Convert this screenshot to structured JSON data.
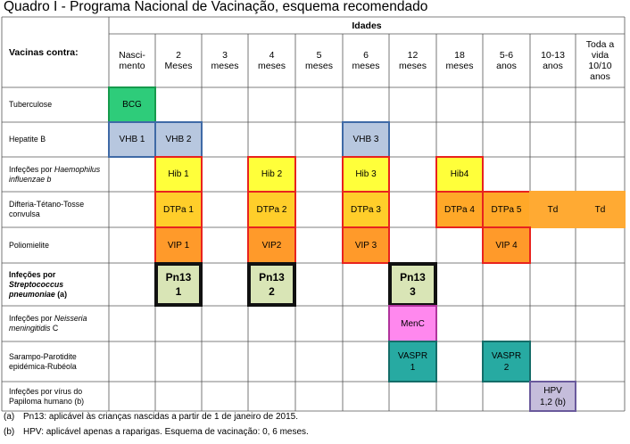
{
  "title": "Quadro I - Programa Nacional de Vacinação, esquema recomendado",
  "header": {
    "idades_label": "Idades",
    "vacinas_label": "Vacinas contra:",
    "ages": [
      "Nasci-\nmento",
      "2\nMeses",
      "3\nmeses",
      "4\nmeses",
      "5\nmeses",
      "6\nmeses",
      "12\nmeses",
      "18\nmeses",
      "5-6\nanos",
      "10-13\nanos",
      "Toda a\nvida\n10/10\nanos"
    ]
  },
  "rows": [
    {
      "pre": "Tuberculose",
      "it": "",
      "post": "",
      "bold": false
    },
    {
      "pre": "Hepatite B",
      "it": "",
      "post": "",
      "bold": false
    },
    {
      "pre": "Infeções por ",
      "it": "Haemophilus influenzae b",
      "post": "",
      "bold": false
    },
    {
      "pre": "Difteria-Tétano-Tosse convulsa",
      "it": "",
      "post": "",
      "bold": false
    },
    {
      "pre": "Poliomielite",
      "it": "",
      "post": "",
      "bold": false
    },
    {
      "pre": "Infeções por ",
      "it": "Streptococcus pneumoniae",
      "post": " (a)",
      "bold": true
    },
    {
      "pre": "Infeções por ",
      "it": "Neisseria meningitidis",
      "post": " C",
      "bold": false
    },
    {
      "pre": "Sarampo-Parotidite epidémica-Rubéola",
      "it": "",
      "post": "",
      "bold": false
    },
    {
      "pre": "Infeções por vírus do Papiloma humano (b)",
      "it": "",
      "post": "",
      "bold": false
    }
  ],
  "vaccines": [
    {
      "label": "BCG",
      "row": 0,
      "col": 0,
      "bg": "#2ecc7a",
      "border": "#169a4c"
    },
    {
      "label": "VHB 1",
      "row": 1,
      "col": 0,
      "bg": "#b7c7df",
      "border": "#3f6aa6"
    },
    {
      "label": "VHB 2",
      "row": 1,
      "col": 1,
      "bg": "#b7c7df",
      "border": "#3f6aa6"
    },
    {
      "label": "VHB 3",
      "row": 1,
      "col": 5,
      "bg": "#b7c7df",
      "border": "#3f6aa6"
    },
    {
      "label": "Hib 1",
      "row": 2,
      "col": 1,
      "bg": "#ffff3a",
      "border": "#e8231e"
    },
    {
      "label": "Hib 2",
      "row": 2,
      "col": 3,
      "bg": "#ffff3a",
      "border": "#e8231e"
    },
    {
      "label": "Hib 3",
      "row": 2,
      "col": 5,
      "bg": "#ffff3a",
      "border": "#e8231e"
    },
    {
      "label": "Hib4",
      "row": 2,
      "col": 7,
      "bg": "#ffff3a",
      "border": "#e8231e"
    },
    {
      "label": "DTPa 1",
      "row": 3,
      "col": 1,
      "bg": "#ffce2a",
      "border": "#e8231e"
    },
    {
      "label": "DTPa 2",
      "row": 3,
      "col": 3,
      "bg": "#ffce2a",
      "border": "#e8231e"
    },
    {
      "label": "DTPa 3",
      "row": 3,
      "col": 5,
      "bg": "#ffce2a",
      "border": "#e8231e"
    },
    {
      "label": "DTPa 4",
      "row": 3,
      "col": 7,
      "bg": "#ffa828",
      "border": "#e8231e"
    },
    {
      "label": "DTPa 5",
      "row": 3,
      "col": 8,
      "bg": "#ffa828",
      "border": "#e8231e"
    },
    {
      "label": "Td",
      "row": 3,
      "col": 9,
      "bg": "#ffaa33",
      "border": "#ffaa33"
    },
    {
      "label": "Td",
      "row": 3,
      "col": 10,
      "bg": "#ffaa33",
      "border": "#ffaa33"
    },
    {
      "label": "VIP 1",
      "row": 4,
      "col": 1,
      "bg": "#ff9a2a",
      "border": "#e8231e"
    },
    {
      "label": "VIP2",
      "row": 4,
      "col": 3,
      "bg": "#ff9a2a",
      "border": "#e8231e"
    },
    {
      "label": "VIP 3",
      "row": 4,
      "col": 5,
      "bg": "#ff9a2a",
      "border": "#e8231e"
    },
    {
      "label": "VIP 4",
      "row": 4,
      "col": 8,
      "bg": "#ff9a2a",
      "border": "#e8231e"
    },
    {
      "label": "Pn13\n1",
      "row": 5,
      "col": 1,
      "bg": "#d9e5b6",
      "border": "#111111",
      "big": true
    },
    {
      "label": "Pn13\n2",
      "row": 5,
      "col": 3,
      "bg": "#d9e5b6",
      "border": "#111111",
      "big": true
    },
    {
      "label": "Pn13\n3",
      "row": 5,
      "col": 6,
      "bg": "#d9e5b6",
      "border": "#111111",
      "big": true
    },
    {
      "label": "MenC",
      "row": 6,
      "col": 6,
      "bg": "#ff88ee",
      "border": "#b0339c"
    },
    {
      "label": "VASPR\n1",
      "row": 7,
      "col": 6,
      "bg": "#27aaa2",
      "border": "#146c68"
    },
    {
      "label": "VASPR\n2",
      "row": 7,
      "col": 8,
      "bg": "#27aaa2",
      "border": "#146c68"
    },
    {
      "label": "HPV\n1,2 (b)",
      "row": 8,
      "col": 9,
      "bg": "#c5bddb",
      "border": "#6a5a9c"
    }
  ],
  "notes": [
    {
      "tag": "(a)",
      "text": "Pn13: aplicável às crianças nascidas a partir de 1 de janeiro de 2015."
    },
    {
      "tag": "(b)",
      "text": "HPV: aplicável apenas a raparigas. Esquema de vacinação: 0, 6 meses."
    }
  ]
}
